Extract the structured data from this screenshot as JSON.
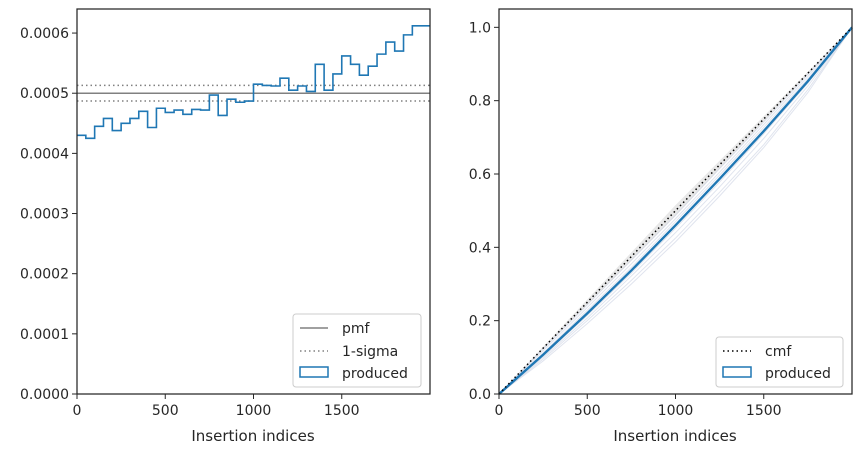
{
  "chart_data": [
    {
      "type": "step",
      "xlabel": "Insertion indices",
      "ylabel": "",
      "xlim": [
        0,
        2000
      ],
      "ylim": [
        0,
        0.00064
      ],
      "xticks": [
        0,
        500,
        1000,
        1500
      ],
      "yticks": [
        0.0,
        0.0001,
        0.0002,
        0.0003,
        0.0004,
        0.0005,
        0.0006
      ],
      "ytick_labels": [
        "0.0000",
        "0.0001",
        "0.0002",
        "0.0003",
        "0.0004",
        "0.0005",
        "0.0006"
      ],
      "legend_position": "lower-right",
      "reference_lines": [
        {
          "name": "pmf",
          "y": 0.0005,
          "style": "solid",
          "color": "#808080"
        },
        {
          "name": "1-sigma",
          "y": 0.000513,
          "style": "dotted",
          "color": "#808080"
        },
        {
          "name": "1-sigma",
          "y": 0.000487,
          "style": "dotted",
          "color": "#808080"
        }
      ],
      "series": [
        {
          "name": "produced",
          "color": "#1f77b4",
          "bin_width": 50,
          "values": [
            0.00043,
            0.000425,
            0.000445,
            0.000458,
            0.000438,
            0.00045,
            0.000458,
            0.00047,
            0.000443,
            0.000475,
            0.000468,
            0.000472,
            0.000465,
            0.000473,
            0.000472,
            0.000497,
            0.000463,
            0.00049,
            0.000485,
            0.000487,
            0.000515,
            0.000513,
            0.000512,
            0.000525,
            0.000505,
            0.000512,
            0.000503,
            0.000548,
            0.000505,
            0.000532,
            0.000562,
            0.000548,
            0.00053,
            0.000545,
            0.000565,
            0.000585,
            0.00057,
            0.000597,
            0.000612,
            0.000612
          ]
        }
      ],
      "legend": [
        {
          "label": "pmf",
          "kind": "solid-line"
        },
        {
          "label": "1-sigma",
          "kind": "dotted-line"
        },
        {
          "label": "produced",
          "kind": "patch"
        }
      ]
    },
    {
      "type": "line",
      "xlabel": "Insertion indices",
      "ylabel": "",
      "xlim": [
        0,
        2000
      ],
      "ylim": [
        0,
        1.05
      ],
      "xticks": [
        0,
        500,
        1000,
        1500
      ],
      "yticks": [
        0.0,
        0.2,
        0.4,
        0.6,
        0.8,
        1.0
      ],
      "ytick_labels": [
        "0.0",
        "0.2",
        "0.4",
        "0.6",
        "0.8",
        "1.0"
      ],
      "legend_position": "lower-right",
      "series": [
        {
          "name": "cmf",
          "style": "dotted",
          "color": "#000000",
          "x": [
            0,
            2000
          ],
          "y": [
            0,
            1.0
          ]
        },
        {
          "name": "produced",
          "style": "solid",
          "color": "#1f77b4",
          "x": [
            0,
            250,
            500,
            750,
            1000,
            1250,
            1500,
            1750,
            2000
          ],
          "y": [
            0,
            0.107,
            0.22,
            0.337,
            0.46,
            0.587,
            0.717,
            0.853,
            1.0
          ]
        }
      ],
      "background_series": [
        {
          "x": [
            0,
            250,
            500,
            750,
            1000,
            1250,
            1500,
            1750,
            2000
          ],
          "y": [
            0,
            0.095,
            0.2,
            0.31,
            0.425,
            0.55,
            0.68,
            0.83,
            1.0
          ]
        },
        {
          "x": [
            0,
            250,
            500,
            750,
            1000,
            1250,
            1500,
            1750,
            2000
          ],
          "y": [
            0,
            0.1,
            0.207,
            0.322,
            0.44,
            0.565,
            0.697,
            0.84,
            1.0
          ]
        },
        {
          "x": [
            0,
            250,
            500,
            750,
            1000,
            1250,
            1500,
            1750,
            2000
          ],
          "y": [
            0,
            0.112,
            0.228,
            0.345,
            0.47,
            0.597,
            0.727,
            0.86,
            1.0
          ]
        },
        {
          "x": [
            0,
            250,
            500,
            750,
            1000,
            1250,
            1500,
            1750,
            2000
          ],
          "y": [
            0,
            0.118,
            0.236,
            0.355,
            0.478,
            0.605,
            0.735,
            0.866,
            1.0
          ]
        },
        {
          "x": [
            0,
            250,
            500,
            750,
            1000,
            1250,
            1500,
            1750,
            2000
          ],
          "y": [
            0,
            0.123,
            0.243,
            0.365,
            0.488,
            0.615,
            0.742,
            0.872,
            1.0
          ]
        },
        {
          "x": [
            0,
            250,
            500,
            750,
            1000,
            1250,
            1500,
            1750,
            2000
          ],
          "y": [
            0,
            0.09,
            0.192,
            0.3,
            0.415,
            0.54,
            0.672,
            0.822,
            1.0
          ]
        },
        {
          "x": [
            0,
            250,
            500,
            750,
            1000,
            1250,
            1500,
            1750,
            2000
          ],
          "y": [
            0,
            0.104,
            0.214,
            0.33,
            0.452,
            0.578,
            0.71,
            0.848,
            1.0
          ]
        }
      ],
      "legend": [
        {
          "label": "cmf",
          "kind": "dotted-line"
        },
        {
          "label": "produced",
          "kind": "patch"
        }
      ]
    }
  ]
}
